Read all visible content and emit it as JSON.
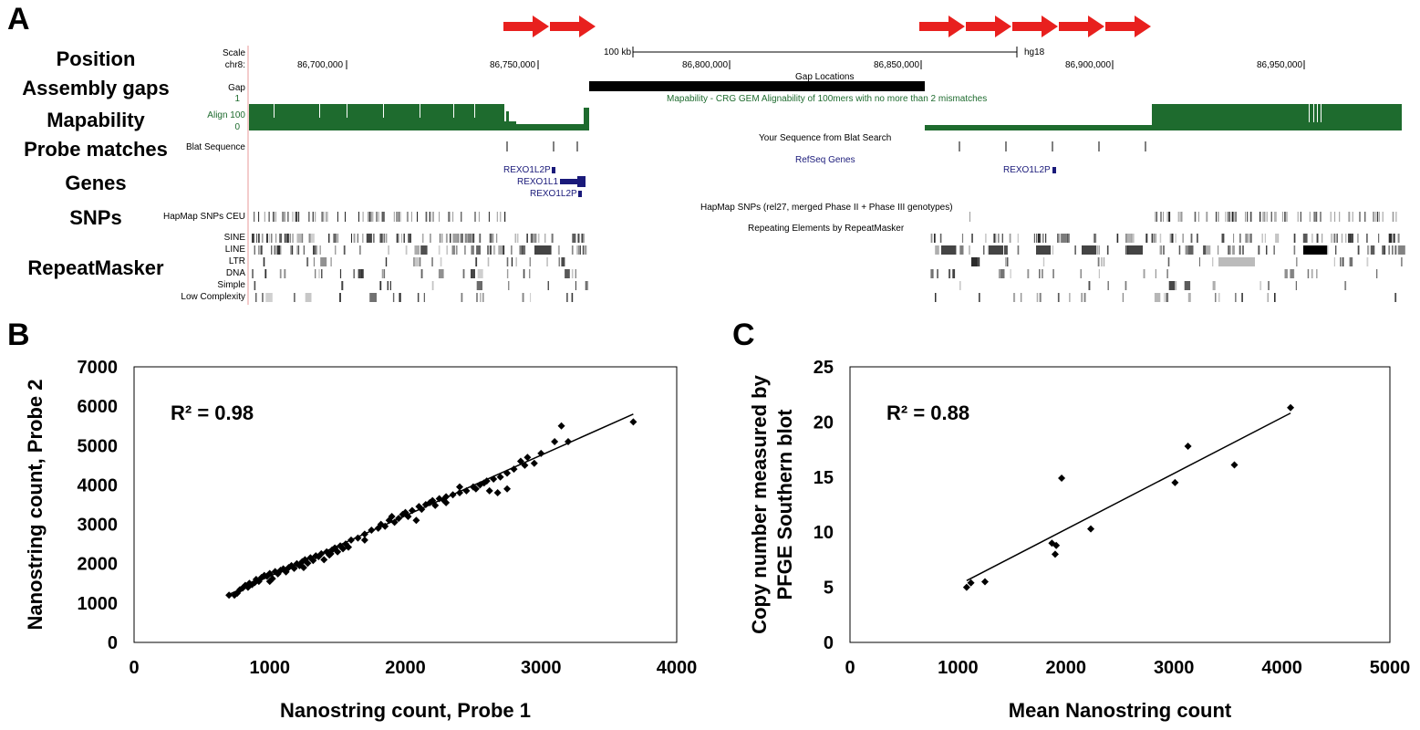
{
  "panels": {
    "a": "A",
    "b": "B",
    "c": "C"
  },
  "genome": {
    "row_labels": [
      "Position",
      "Assembly gaps",
      "Mapability",
      "Probe matches",
      "Genes",
      "SNPs",
      "RepeatMasker"
    ],
    "scale_label": "Scale",
    "chrom_label": "chr8:",
    "scale_bar": "100 kb",
    "assembly": "hg18",
    "positions": [
      "86,700,000",
      "86,750,000",
      "86,800,000",
      "86,850,000",
      "86,900,000",
      "86,950,000"
    ],
    "gap_track_title": "Gap Locations",
    "gap_label": "Gap",
    "mapability_title": "Mapability - CRG GEM Alignability of 100mers with no more than 2 mismatches",
    "mapability_label": "Align 100",
    "mapability_max": "1",
    "mapability_min": "0",
    "blat_title": "Your Sequence from Blat Search",
    "blat_label": "Blat Sequence",
    "refseq_title": "RefSeq Genes",
    "genes": [
      "REXO1L2P",
      "REXO1L1",
      "REXO1L2P",
      "REXO1L2P"
    ],
    "snp_title": "HapMap SNPs (rel27, merged Phase II + Phase III genotypes)",
    "snp_label": "HapMap SNPs CEU",
    "repeat_title": "Repeating Elements by RepeatMasker",
    "repeat_classes": [
      "SINE",
      "LINE",
      "LTR",
      "DNA",
      "Simple",
      "Low Complexity"
    ],
    "arrow_color": "#e8201e",
    "mapability_color": "#1e6b2e"
  },
  "chart_data": [
    {
      "type": "scatter",
      "panel": "B",
      "xlabel": "Nanostring count, Probe 1",
      "ylabel": "Nanostring count, Probe 2",
      "xlim": [
        0,
        4000
      ],
      "ylim": [
        0,
        7000
      ],
      "xticks": [
        "0",
        "1000",
        "2000",
        "3000",
        "4000"
      ],
      "yticks": [
        "0",
        "1000",
        "2000",
        "3000",
        "4000",
        "5000",
        "6000",
        "7000"
      ],
      "annotation": "R² = 0.98",
      "r2": 0.98,
      "trendline": [
        [
          700,
          1220
        ],
        [
          3680,
          5800
        ]
      ],
      "points": [
        [
          700,
          1200
        ],
        [
          740,
          1200
        ],
        [
          760,
          1250
        ],
        [
          780,
          1340
        ],
        [
          800,
          1380
        ],
        [
          820,
          1450
        ],
        [
          840,
          1400
        ],
        [
          850,
          1500
        ],
        [
          870,
          1470
        ],
        [
          890,
          1520
        ],
        [
          900,
          1600
        ],
        [
          920,
          1550
        ],
        [
          940,
          1650
        ],
        [
          960,
          1700
        ],
        [
          980,
          1680
        ],
        [
          1000,
          1750
        ],
        [
          1020,
          1620
        ],
        [
          1040,
          1800
        ],
        [
          1060,
          1740
        ],
        [
          1080,
          1830
        ],
        [
          1100,
          1870
        ],
        [
          1120,
          1790
        ],
        [
          1140,
          1900
        ],
        [
          1160,
          1950
        ],
        [
          1180,
          1880
        ],
        [
          1200,
          2000
        ],
        [
          1220,
          1950
        ],
        [
          1240,
          2050
        ],
        [
          1260,
          2100
        ],
        [
          1280,
          2010
        ],
        [
          1300,
          2150
        ],
        [
          1320,
          2080
        ],
        [
          1340,
          2200
        ],
        [
          1360,
          2180
        ],
        [
          1380,
          2250
        ],
        [
          1400,
          2100
        ],
        [
          1420,
          2300
        ],
        [
          1440,
          2220
        ],
        [
          1460,
          2350
        ],
        [
          1480,
          2400
        ],
        [
          1500,
          2300
        ],
        [
          1520,
          2450
        ],
        [
          1540,
          2380
        ],
        [
          1560,
          2500
        ],
        [
          1580,
          2420
        ],
        [
          1600,
          2600
        ],
        [
          1650,
          2650
        ],
        [
          1700,
          2750
        ],
        [
          1750,
          2850
        ],
        [
          1800,
          2900
        ],
        [
          1820,
          3000
        ],
        [
          1850,
          2950
        ],
        [
          1880,
          3100
        ],
        [
          1900,
          3200
        ],
        [
          1920,
          3050
        ],
        [
          1950,
          3150
        ],
        [
          1980,
          3250
        ],
        [
          2000,
          3300
        ],
        [
          2020,
          3200
        ],
        [
          2050,
          3350
        ],
        [
          2080,
          3100
        ],
        [
          2100,
          3450
        ],
        [
          2120,
          3380
        ],
        [
          2150,
          3500
        ],
        [
          2180,
          3550
        ],
        [
          2200,
          3600
        ],
        [
          2220,
          3480
        ],
        [
          2250,
          3650
        ],
        [
          2280,
          3620
        ],
        [
          2300,
          3700
        ],
        [
          2350,
          3750
        ],
        [
          2400,
          3800
        ],
        [
          2450,
          3850
        ],
        [
          2500,
          3950
        ],
        [
          2520,
          3900
        ],
        [
          2550,
          4000
        ],
        [
          2580,
          4050
        ],
        [
          2600,
          4100
        ],
        [
          2620,
          3850
        ],
        [
          2650,
          4150
        ],
        [
          2680,
          3800
        ],
        [
          2700,
          4200
        ],
        [
          2750,
          4300
        ],
        [
          2800,
          4400
        ],
        [
          2850,
          4600
        ],
        [
          2880,
          4500
        ],
        [
          2900,
          4700
        ],
        [
          2950,
          4550
        ],
        [
          3000,
          4800
        ],
        [
          3100,
          5100
        ],
        [
          3150,
          5500
        ],
        [
          3200,
          5100
        ],
        [
          3680,
          5600
        ],
        [
          2300,
          3550
        ],
        [
          1700,
          2600
        ],
        [
          1450,
          2250
        ],
        [
          1250,
          1900
        ],
        [
          1000,
          1550
        ],
        [
          2400,
          3950
        ],
        [
          2750,
          3900
        ]
      ]
    },
    {
      "type": "scatter",
      "panel": "C",
      "xlabel": "Mean Nanostring count",
      "ylabel": "Copy number measured by PFGE Southern blot",
      "xlim": [
        0,
        5000
      ],
      "ylim": [
        0,
        25
      ],
      "xticks": [
        "0",
        "1000",
        "2000",
        "3000",
        "4000",
        "5000"
      ],
      "yticks": [
        "0",
        "5",
        "10",
        "15",
        "20",
        "25"
      ],
      "annotation": "R² = 0.88",
      "r2": 0.88,
      "trendline": [
        [
          1080,
          5.6
        ],
        [
          4080,
          20.8
        ]
      ],
      "points": [
        [
          1080,
          5.0
        ],
        [
          1120,
          5.4
        ],
        [
          1250,
          5.5
        ],
        [
          1870,
          9.0
        ],
        [
          1900,
          8.0
        ],
        [
          1910,
          8.8
        ],
        [
          1960,
          14.9
        ],
        [
          2230,
          10.3
        ],
        [
          3010,
          14.5
        ],
        [
          3130,
          17.8
        ],
        [
          3560,
          16.1
        ],
        [
          4080,
          21.3
        ]
      ]
    }
  ]
}
